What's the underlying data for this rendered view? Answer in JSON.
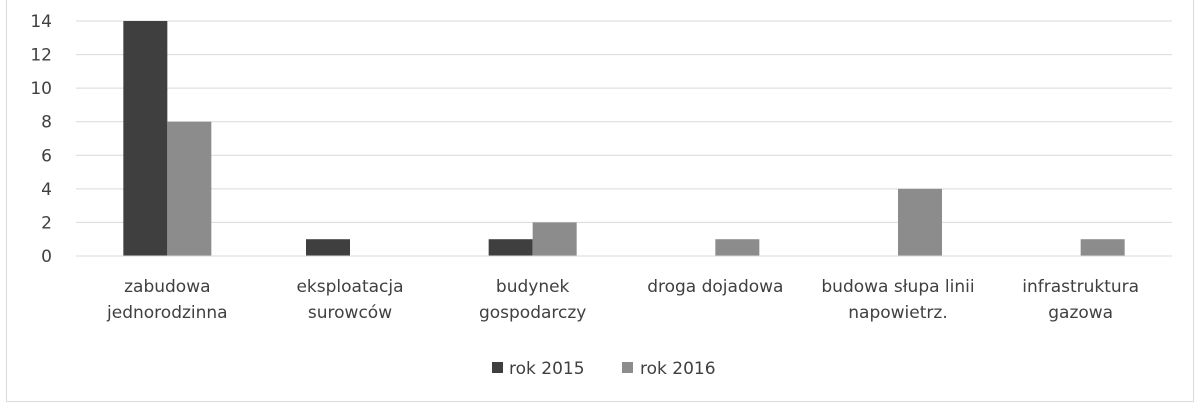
{
  "chart_data": {
    "type": "bar",
    "categories": [
      [
        "zabudowa",
        "jednorodzinna"
      ],
      [
        "eksploatacja",
        "surowców"
      ],
      [
        "budynek",
        "gospodarczy"
      ],
      [
        "droga dojadowa"
      ],
      [
        "budowa słupa linii",
        "napowietrz."
      ],
      [
        "infrastruktura",
        "gazowa"
      ]
    ],
    "series": [
      {
        "name": "rok 2015",
        "values": [
          14,
          1,
          1,
          0,
          0,
          0
        ],
        "color": "#3f3f3f"
      },
      {
        "name": "rok 2016",
        "values": [
          8,
          0,
          2,
          1,
          4,
          1
        ],
        "color": "#8c8c8c"
      }
    ],
    "ylim": [
      0,
      14
    ],
    "yticks": [
      0,
      2,
      4,
      6,
      8,
      10,
      12,
      14
    ],
    "grid": true,
    "legend_position": "bottom-center",
    "title": "",
    "xlabel": "",
    "ylabel": ""
  }
}
